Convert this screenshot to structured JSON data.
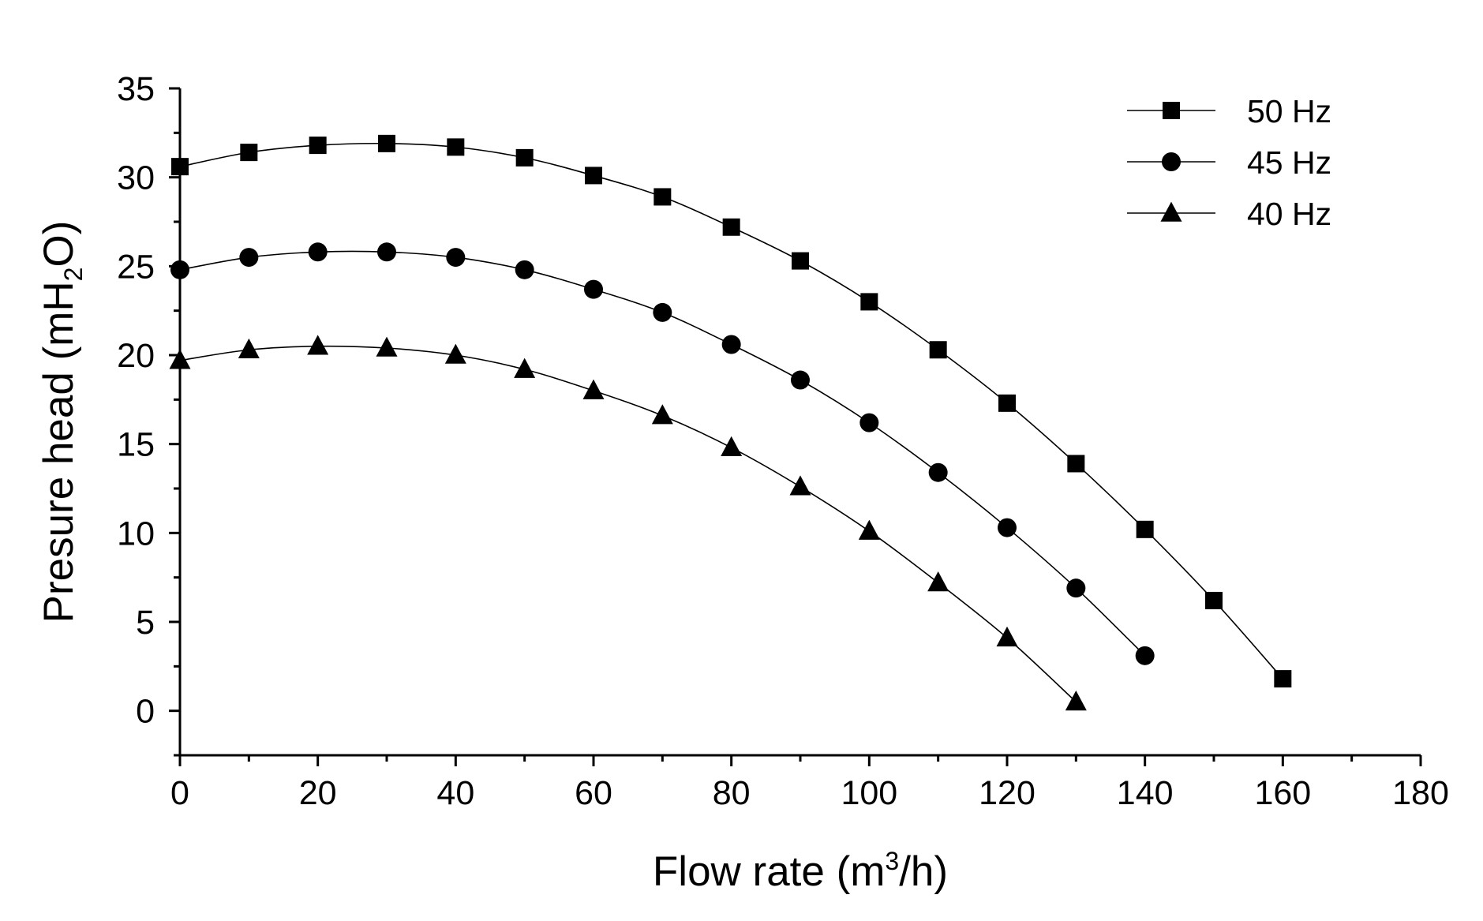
{
  "chart_data": {
    "type": "line",
    "title": "",
    "xlabel": {
      "pre": "Flow rate (m",
      "sup": "3",
      "post": "/h)"
    },
    "ylabel": {
      "pre": "Presure head (mH",
      "sub": "2",
      "post": "O)"
    },
    "xlim": [
      0,
      180
    ],
    "ylim": [
      -2.5,
      35
    ],
    "xticks": [
      0,
      20,
      40,
      60,
      80,
      100,
      120,
      140,
      160,
      180
    ],
    "xtick_labels": [
      "0",
      "20",
      "40",
      "60",
      "80",
      "100",
      "120",
      "140",
      "160",
      "180"
    ],
    "yticks": [
      0,
      5,
      10,
      15,
      20,
      25,
      30,
      35
    ],
    "ytick_labels": [
      "0",
      "5",
      "10",
      "15",
      "20",
      "25",
      "30",
      "35"
    ],
    "grid": false,
    "legend_position": "top-right",
    "series": [
      {
        "name": "50 Hz",
        "marker": "square",
        "x": [
          0,
          10,
          20,
          30,
          40,
          50,
          60,
          70,
          80,
          90,
          100,
          110,
          120,
          130,
          140,
          150,
          160
        ],
        "values": [
          30.6,
          31.4,
          31.8,
          31.9,
          31.7,
          31.1,
          30.1,
          28.9,
          27.2,
          25.3,
          23.0,
          20.3,
          17.3,
          13.9,
          10.2,
          6.2,
          1.8
        ]
      },
      {
        "name": "45 Hz",
        "marker": "circle",
        "x": [
          0,
          10,
          20,
          30,
          40,
          50,
          60,
          70,
          80,
          90,
          100,
          110,
          120,
          130,
          140
        ],
        "values": [
          24.8,
          25.5,
          25.8,
          25.8,
          25.5,
          24.8,
          23.7,
          22.4,
          20.6,
          18.6,
          16.2,
          13.4,
          10.3,
          6.9,
          3.1
        ]
      },
      {
        "name": "40 Hz",
        "marker": "triangle",
        "x": [
          0,
          10,
          20,
          30,
          40,
          50,
          60,
          70,
          80,
          90,
          100,
          110,
          120,
          130
        ],
        "values": [
          19.7,
          20.3,
          20.5,
          20.4,
          20.0,
          19.2,
          18.0,
          16.6,
          14.8,
          12.6,
          10.1,
          7.2,
          4.1,
          0.5
        ]
      }
    ]
  }
}
